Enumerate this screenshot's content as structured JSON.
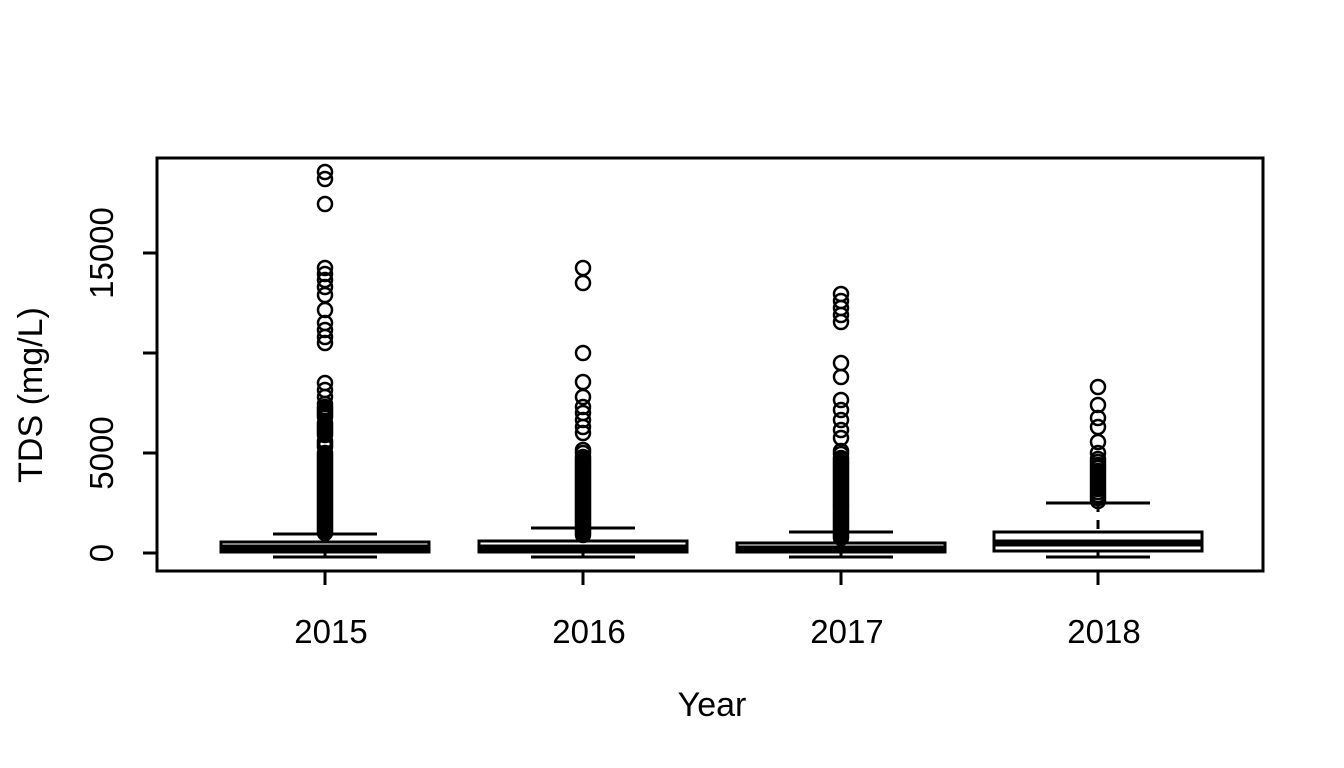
{
  "chart_data": {
    "type": "boxplot",
    "title": "",
    "xlabel": "Year",
    "ylabel": "TDS (mg/L)",
    "categories": [
      "2015",
      "2016",
      "2017",
      "2018"
    ],
    "y_ticks": [
      {
        "value": 0,
        "label": "0"
      },
      {
        "value": 5000,
        "label": "5000"
      },
      {
        "value": 10000,
        "label": ""
      },
      {
        "value": 15000,
        "label": "15000"
      }
    ],
    "ylim": [
      -900,
      19750
    ],
    "grid": false,
    "legend": "none",
    "colors": {
      "foreground": "#000000",
      "background": "#ffffff"
    },
    "series": [
      {
        "category": "2015",
        "whisker_low": 0,
        "q1": 50,
        "median": 250,
        "q3": 550,
        "whisker_high": 950,
        "outlier_bands": [
          {
            "from": 1000,
            "to": 5000,
            "step": 100
          },
          {
            "from": 5300,
            "to": 5600,
            "step": 100
          },
          {
            "from": 5900,
            "to": 6500,
            "step": 100
          },
          {
            "from": 6800,
            "to": 7300,
            "step": 100
          }
        ],
        "outliers": [
          7450,
          7800,
          8150,
          8500,
          10500,
          10800,
          11150,
          11500,
          12150,
          12900,
          13300,
          13650,
          13950,
          14250,
          17450,
          18700,
          19050
        ]
      },
      {
        "category": "2016",
        "whisker_low": 0,
        "q1": 50,
        "median": 250,
        "q3": 600,
        "whisker_high": 1250,
        "outlier_bands": [
          {
            "from": 900,
            "to": 4850,
            "step": 100
          }
        ],
        "outliers": [
          5000,
          5150,
          6000,
          6300,
          6650,
          7000,
          7300,
          7800,
          8550,
          10000,
          13500,
          14250
        ]
      },
      {
        "category": "2017",
        "whisker_low": 0,
        "q1": 50,
        "median": 200,
        "q3": 500,
        "whisker_high": 1050,
        "outlier_bands": [
          {
            "from": 750,
            "to": 4800,
            "step": 100
          }
        ],
        "outliers": [
          4950,
          5100,
          5750,
          6150,
          6650,
          7150,
          7650,
          8800,
          9500,
          11550,
          11900,
          12250,
          12600,
          12950
        ]
      },
      {
        "category": "2018",
        "whisker_low": 0,
        "q1": 100,
        "median": 500,
        "q3": 1050,
        "whisker_high": 2500,
        "outlier_bands": [
          {
            "from": 2600,
            "to": 4700,
            "step": 150
          }
        ],
        "outliers": [
          5000,
          5550,
          6300,
          6750,
          7400,
          8300
        ]
      }
    ]
  }
}
